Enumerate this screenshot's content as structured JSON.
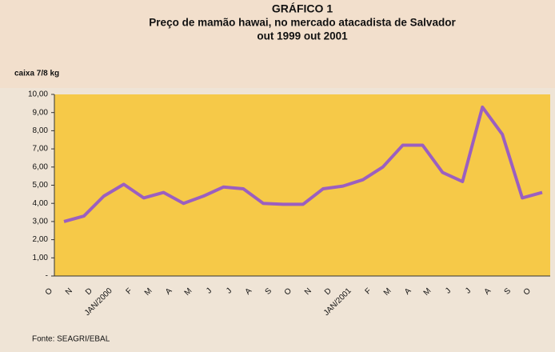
{
  "chart_data": {
    "type": "line",
    "label": "GRÁFICO 1",
    "title": "Preço de mamão hawai, no mercado atacadista de Salvador",
    "subtitle": "out 1999 out 2001",
    "y_label": "caixa 7/8 kg",
    "source": "Fonte: SEAGRI/EBAL",
    "categories": [
      "O",
      "N",
      "D",
      "JAN/2000",
      "F",
      "M",
      "A",
      "M",
      "J",
      "J",
      "A",
      "S",
      "O",
      "N",
      "D",
      "JAN/2001",
      "F",
      "M",
      "A",
      "M",
      "J",
      "J",
      "A",
      "S",
      "O"
    ],
    "series": [
      {
        "name": "Preço",
        "color": "#9b5fc0",
        "values": [
          3.0,
          3.3,
          4.4,
          5.05,
          4.3,
          4.6,
          4.0,
          4.4,
          4.9,
          4.8,
          4.0,
          3.95,
          3.95,
          4.8,
          4.95,
          5.3,
          6.0,
          7.2,
          7.2,
          5.7,
          5.2,
          9.3,
          7.8,
          4.3,
          4.6
        ]
      }
    ],
    "ylim": [
      0,
      10
    ],
    "yticks": [
      {
        "value": 0,
        "label": "-"
      },
      {
        "value": 1,
        "label": "1,00"
      },
      {
        "value": 2,
        "label": "2,00"
      },
      {
        "value": 3,
        "label": "3,00"
      },
      {
        "value": 4,
        "label": "4,00"
      },
      {
        "value": 5,
        "label": "5,00"
      },
      {
        "value": 6,
        "label": "6,00"
      },
      {
        "value": 7,
        "label": "7,00"
      },
      {
        "value": 8,
        "label": "8,00"
      },
      {
        "value": 9,
        "label": "9,00"
      },
      {
        "value": 10,
        "label": "10,00"
      }
    ],
    "plot_color": "#f6c948"
  }
}
